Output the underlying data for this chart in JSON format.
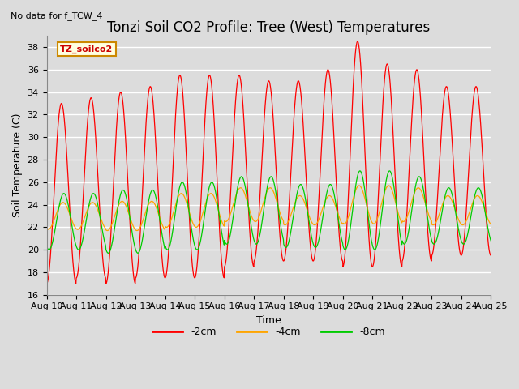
{
  "title": "Tonzi Soil CO2 Profile: Tree (West) Temperatures",
  "subtitle": "No data for f_TCW_4",
  "ylabel": "Soil Temperature (C)",
  "xlabel": "Time",
  "ylim": [
    16,
    39
  ],
  "yticks": [
    16,
    18,
    20,
    22,
    24,
    26,
    28,
    30,
    32,
    34,
    36,
    38
  ],
  "xlim": [
    0,
    15
  ],
  "xtick_labels": [
    "Aug 10",
    "Aug 11",
    "Aug 12",
    "Aug 13",
    "Aug 14",
    "Aug 15",
    "Aug 16",
    "Aug 17",
    "Aug 18",
    "Aug 19",
    "Aug 20",
    "Aug 21",
    "Aug 22",
    "Aug 23",
    "Aug 24",
    "Aug 25"
  ],
  "legend_label": "TZ_soilco2",
  "line_labels": [
    "-2cm",
    "-4cm",
    "-8cm"
  ],
  "line_colors": [
    "#ff0000",
    "#ffa500",
    "#00cc00"
  ],
  "bg_color": "#dcdcdc",
  "plot_bg_color": "#dcdcdc",
  "title_fontsize": 12,
  "label_fontsize": 9,
  "tick_fontsize": 8,
  "mean_2cm": [
    25.0,
    25.5,
    25.5,
    26.0,
    26.5,
    26.5,
    27.0,
    27.0,
    27.0,
    27.5,
    28.5,
    27.5,
    27.5,
    27.0,
    27.0
  ],
  "amp_2cm": [
    8.0,
    8.0,
    8.5,
    8.5,
    9.0,
    9.0,
    8.5,
    8.0,
    8.0,
    8.5,
    10.0,
    9.0,
    8.5,
    7.5,
    7.5
  ],
  "mean_4cm": [
    23.0,
    23.0,
    23.0,
    23.0,
    23.5,
    23.5,
    24.0,
    24.0,
    23.5,
    23.5,
    24.0,
    24.0,
    24.0,
    23.5,
    23.5
  ],
  "amp_4cm": [
    1.2,
    1.2,
    1.3,
    1.3,
    1.5,
    1.5,
    1.5,
    1.5,
    1.3,
    1.3,
    1.7,
    1.7,
    1.5,
    1.3,
    1.3
  ],
  "mean_8cm": [
    22.5,
    22.5,
    22.5,
    22.5,
    23.0,
    23.0,
    23.5,
    23.5,
    23.0,
    23.0,
    23.5,
    23.5,
    23.5,
    23.0,
    23.0
  ],
  "amp_8cm": [
    2.5,
    2.5,
    2.8,
    2.8,
    3.0,
    3.0,
    3.0,
    3.0,
    2.8,
    2.8,
    3.5,
    3.5,
    3.0,
    2.5,
    2.5
  ],
  "lag_4cm": 0.05,
  "lag_8cm": 0.08
}
